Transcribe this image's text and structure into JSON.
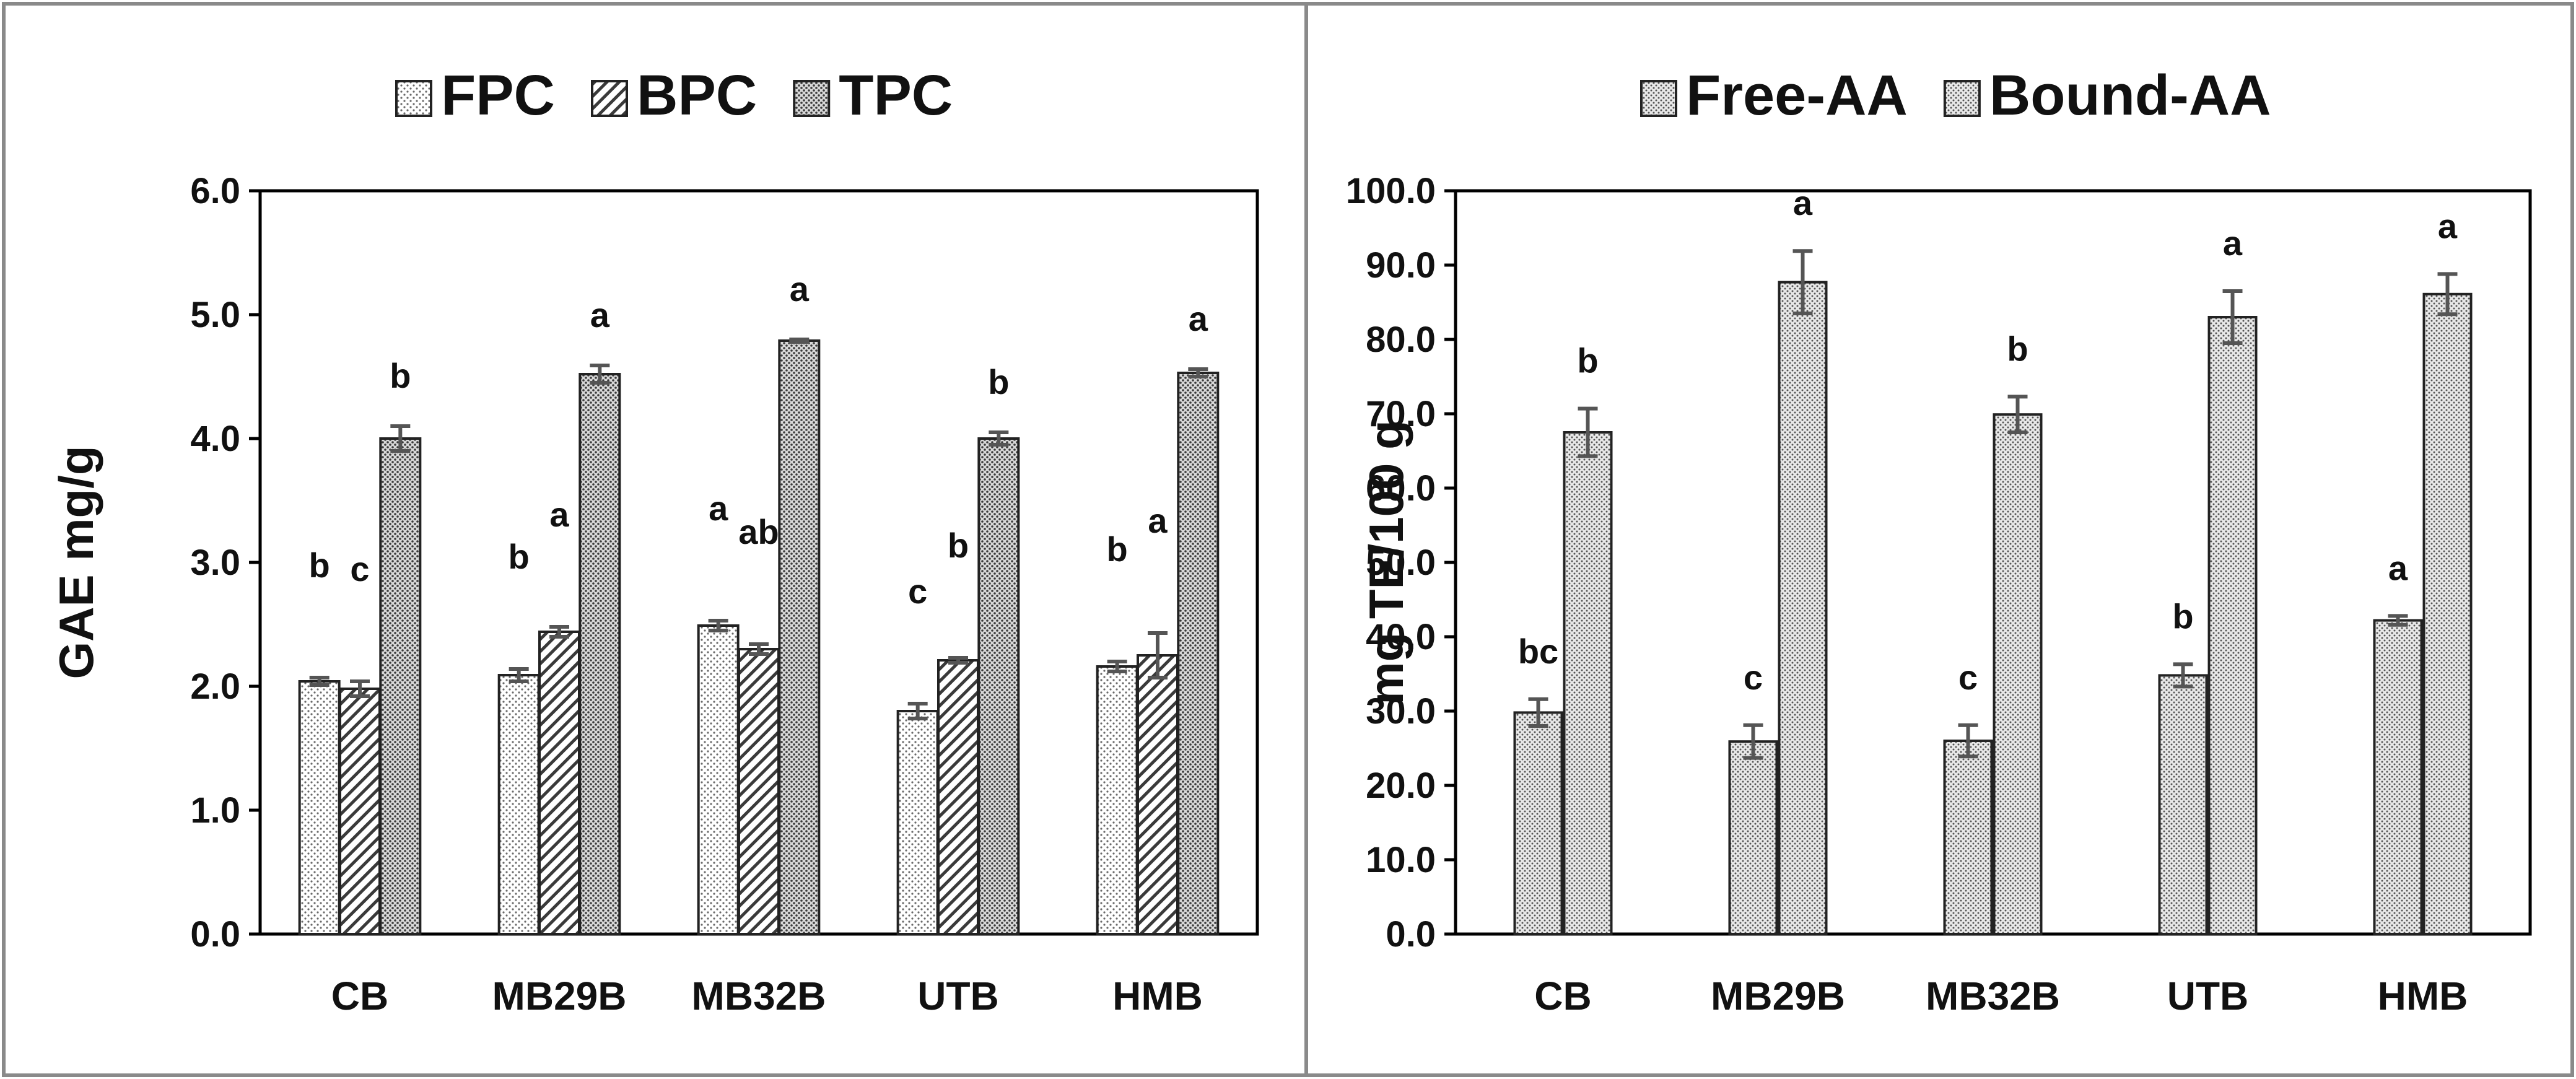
{
  "chart_data": [
    {
      "type": "bar",
      "title": "",
      "xlabel": "",
      "ylabel": "GAE mg/g",
      "ylim": [
        0,
        6
      ],
      "ytick_step": 1,
      "ytick_labels": [
        "0.0",
        "1.0",
        "2.0",
        "3.0",
        "4.0",
        "5.0",
        "6.0"
      ],
      "categories": [
        "CB",
        "MB29B",
        "MB32B",
        "UTB",
        "HMB"
      ],
      "legend": [
        "FPC",
        "BPC",
        "TPC"
      ],
      "legend_position": "top",
      "grid": false,
      "series": [
        {
          "name": "FPC",
          "values": [
            2.04,
            2.09,
            2.49,
            1.8,
            2.16
          ],
          "errors": [
            0.03,
            0.05,
            0.04,
            0.06,
            0.04
          ],
          "labels": [
            "b",
            "b",
            "a",
            "c",
            "b"
          ]
        },
        {
          "name": "BPC",
          "values": [
            1.98,
            2.44,
            2.3,
            2.21,
            2.25
          ],
          "errors": [
            0.06,
            0.04,
            0.04,
            0.02,
            0.18
          ],
          "labels": [
            "c",
            "a",
            "ab",
            "b",
            "a"
          ]
        },
        {
          "name": "TPC",
          "values": [
            4.0,
            4.52,
            4.79,
            4.0,
            4.53
          ],
          "errors": [
            0.1,
            0.07,
            0.01,
            0.05,
            0.03
          ],
          "labels": [
            "b",
            "a",
            "a",
            "b",
            "a"
          ]
        }
      ]
    },
    {
      "type": "bar",
      "title": "",
      "xlabel": "",
      "ylabel": "mg TE/100 g",
      "ylim": [
        0,
        100
      ],
      "ytick_step": 10,
      "ytick_labels": [
        "0.0",
        "10.0",
        "20.0",
        "30.0",
        "40.0",
        "50.0",
        "60.0",
        "70.0",
        "80.0",
        "90.0",
        "100.0"
      ],
      "categories": [
        "CB",
        "MB29B",
        "MB32B",
        "UTB",
        "HMB"
      ],
      "legend": [
        "Free-AA",
        "Bound-AA"
      ],
      "legend_position": "top",
      "grid": false,
      "series": [
        {
          "name": "Free-AA",
          "values": [
            29.8,
            25.9,
            26.0,
            34.8,
            42.2
          ],
          "errors": [
            1.8,
            2.2,
            2.1,
            1.5,
            0.6
          ],
          "labels": [
            "bc",
            "c",
            "c",
            "b",
            "a"
          ]
        },
        {
          "name": "Bound-AA",
          "values": [
            67.5,
            87.7,
            69.9,
            83.0,
            86.1
          ],
          "errors": [
            3.2,
            4.2,
            2.4,
            3.5,
            2.7
          ],
          "labels": [
            "b",
            "a",
            "b",
            "a",
            "a"
          ]
        }
      ]
    }
  ]
}
